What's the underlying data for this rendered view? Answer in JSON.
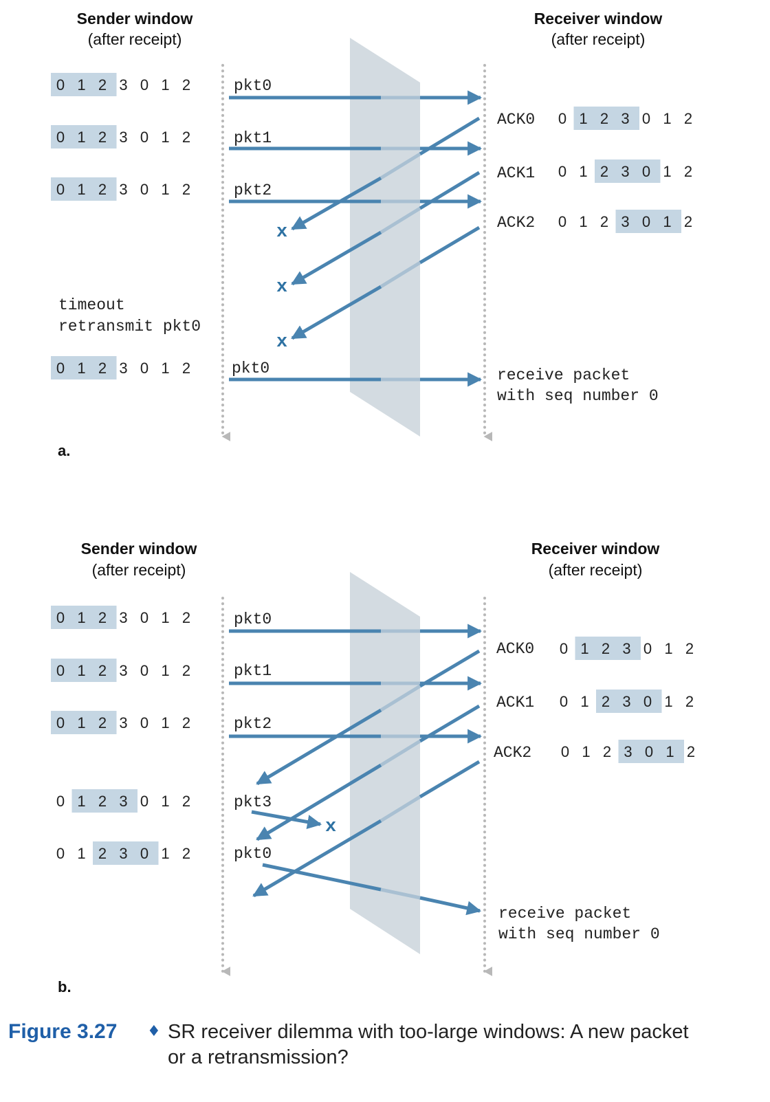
{
  "colors": {
    "arrow": "#4a84b0",
    "arrow_behind": "#a9c0d2",
    "window_highlight": "#c5d6e3",
    "channel": "#d3dbe1",
    "timeline": "#b8b8b8",
    "caption_accent": "#1f5fa8"
  },
  "panels": [
    {
      "label": "a.",
      "sender_header": [
        "Sender window",
        "(after receipt)"
      ],
      "receiver_header": [
        "Receiver window",
        "(after receipt)"
      ],
      "sender_windows": [
        {
          "seq": [
            "0",
            "1",
            "2",
            "3",
            "0",
            "1",
            "2"
          ],
          "window": [
            0,
            3
          ]
        },
        {
          "seq": [
            "0",
            "1",
            "2",
            "3",
            "0",
            "1",
            "2"
          ],
          "window": [
            0,
            3
          ]
        },
        {
          "seq": [
            "0",
            "1",
            "2",
            "3",
            "0",
            "1",
            "2"
          ],
          "window": [
            0,
            3
          ]
        },
        {
          "seq": [
            "0",
            "1",
            "2",
            "3",
            "0",
            "1",
            "2"
          ],
          "window": [
            0,
            3
          ]
        }
      ],
      "sender_labels": [
        "pkt0",
        "pkt1",
        "pkt2",
        "pkt0"
      ],
      "sender_note": [
        "timeout",
        "retransmit pkt0"
      ],
      "receiver_rows": [
        {
          "ack": "ACK0",
          "seq": [
            "0",
            "1",
            "2",
            "3",
            "0",
            "1",
            "2"
          ],
          "window": [
            1,
            4
          ]
        },
        {
          "ack": "ACK1",
          "seq": [
            "0",
            "1",
            "2",
            "3",
            "0",
            "1",
            "2"
          ],
          "window": [
            2,
            5
          ]
        },
        {
          "ack": "ACK2",
          "seq": [
            "0",
            "1",
            "2",
            "3",
            "0",
            "1",
            "2"
          ],
          "window": [
            3,
            6
          ]
        }
      ],
      "receiver_note": [
        "receive packet",
        "with seq number 0"
      ],
      "loss_marks": [
        "x",
        "x",
        "x"
      ]
    },
    {
      "label": "b.",
      "sender_header": [
        "Sender window",
        "(after receipt)"
      ],
      "receiver_header": [
        "Receiver window",
        "(after receipt)"
      ],
      "sender_windows": [
        {
          "seq": [
            "0",
            "1",
            "2",
            "3",
            "0",
            "1",
            "2"
          ],
          "window": [
            0,
            3
          ]
        },
        {
          "seq": [
            "0",
            "1",
            "2",
            "3",
            "0",
            "1",
            "2"
          ],
          "window": [
            0,
            3
          ]
        },
        {
          "seq": [
            "0",
            "1",
            "2",
            "3",
            "0",
            "1",
            "2"
          ],
          "window": [
            0,
            3
          ]
        },
        {
          "seq": [
            "0",
            "1",
            "2",
            "3",
            "0",
            "1",
            "2"
          ],
          "window": [
            1,
            4
          ]
        },
        {
          "seq": [
            "0",
            "1",
            "2",
            "3",
            "0",
            "1",
            "2"
          ],
          "window": [
            2,
            5
          ]
        }
      ],
      "sender_labels": [
        "pkt0",
        "pkt1",
        "pkt2",
        "pkt3",
        "pkt0"
      ],
      "receiver_rows": [
        {
          "ack": "ACK0",
          "seq": [
            "0",
            "1",
            "2",
            "3",
            "0",
            "1",
            "2"
          ],
          "window": [
            1,
            4
          ]
        },
        {
          "ack": "ACK1",
          "seq": [
            "0",
            "1",
            "2",
            "3",
            "0",
            "1",
            "2"
          ],
          "window": [
            2,
            5
          ]
        },
        {
          "ack": "ACK2",
          "seq": [
            "0",
            "1",
            "2",
            "3",
            "0",
            "1",
            "2"
          ],
          "window": [
            3,
            6
          ]
        }
      ],
      "receiver_note": [
        "receive packet",
        "with seq number 0"
      ],
      "loss_marks": [
        "x"
      ]
    }
  ],
  "caption": {
    "number": "Figure 3.27",
    "lines": [
      "SR receiver dilemma with too-large windows: A new packet",
      "or a retransmission?"
    ]
  }
}
